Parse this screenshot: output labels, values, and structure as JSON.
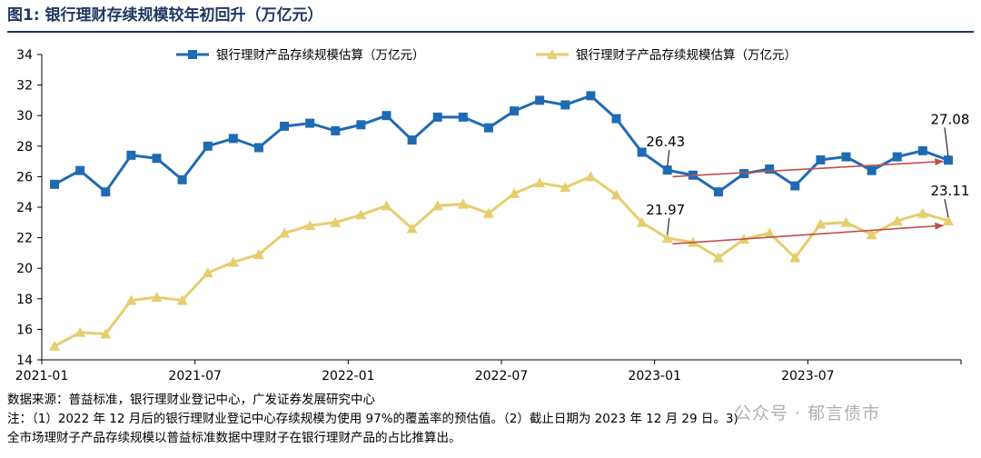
{
  "figure": {
    "title": "图1:  银行理财存续规模较年初回升（万亿元）",
    "source": "数据来源：普益标准，银行理财业登记中心，广发证券发展研究中心",
    "note1": "注：（1）2022 年 12 月后的银行理财业登记中心存续规模为使用 97%的覆盖率的预估值。（2）截止日期为 2023 年 12 月 29 日。3)",
    "note2": "全市场理财子产品存续规模以普益标准数据中理财子在银行理财产品的占比推算出。",
    "watermark": "公众号 · 郁言债市"
  },
  "chart_data": {
    "type": "line",
    "ylim": [
      14,
      34
    ],
    "yticks": [
      14,
      16,
      18,
      20,
      22,
      24,
      26,
      28,
      30,
      32,
      34
    ],
    "xtick_labels": [
      "2021-01",
      "2021-07",
      "2022-01",
      "2022-07",
      "2023-01",
      "2023-07"
    ],
    "x": [
      "2021-01",
      "2021-02",
      "2021-03",
      "2021-04",
      "2021-05",
      "2021-06",
      "2021-07",
      "2021-08",
      "2021-09",
      "2021-10",
      "2021-11",
      "2021-12",
      "2022-01",
      "2022-02",
      "2022-03",
      "2022-04",
      "2022-05",
      "2022-06",
      "2022-07",
      "2022-08",
      "2022-09",
      "2022-10",
      "2022-11",
      "2022-12",
      "2023-01",
      "2023-02",
      "2023-03",
      "2023-04",
      "2023-05",
      "2023-06",
      "2023-07",
      "2023-08",
      "2023-09",
      "2023-10",
      "2023-11",
      "2023-12"
    ],
    "series": [
      {
        "name": "银行理财产品存续规模估算（万亿元）",
        "color": "#1f6bb3",
        "marker": "square",
        "values": [
          25.5,
          26.4,
          25.0,
          27.4,
          27.2,
          25.8,
          28.0,
          28.5,
          27.9,
          29.3,
          29.5,
          29.0,
          29.4,
          30.0,
          28.4,
          29.9,
          29.9,
          29.2,
          30.3,
          31.0,
          30.7,
          31.3,
          29.8,
          27.6,
          26.43,
          26.1,
          25.0,
          26.2,
          26.5,
          25.4,
          27.1,
          27.3,
          26.4,
          27.3,
          27.7,
          27.08
        ]
      },
      {
        "name": "银行理财子产品存续规模估算（万亿元）",
        "color": "#e6cd6e",
        "marker": "triangle",
        "values": [
          14.9,
          15.8,
          15.7,
          17.9,
          18.1,
          17.9,
          19.7,
          20.4,
          20.9,
          22.3,
          22.8,
          23.0,
          23.5,
          24.1,
          22.6,
          24.1,
          24.2,
          23.6,
          24.9,
          25.6,
          25.3,
          26.0,
          24.8,
          23.0,
          21.97,
          21.7,
          20.7,
          21.9,
          22.3,
          20.7,
          22.9,
          23.0,
          22.2,
          23.1,
          23.6,
          23.11
        ]
      }
    ],
    "annotations": [
      {
        "text": "26.43",
        "series": 0,
        "index": 24
      },
      {
        "text": "27.08",
        "series": 0,
        "index": 35
      },
      {
        "text": "21.97",
        "series": 1,
        "index": 24
      },
      {
        "text": "23.11",
        "series": 1,
        "index": 35
      }
    ],
    "trend_arrows": [
      {
        "color": "#c0504d",
        "from": {
          "index": 24.2,
          "value": 26.0
        },
        "to": {
          "index": 34.8,
          "value": 27.0
        }
      },
      {
        "color": "#c0504d",
        "from": {
          "index": 24.2,
          "value": 21.6
        },
        "to": {
          "index": 34.8,
          "value": 22.8
        }
      }
    ],
    "legend": "top-center",
    "grid": false
  }
}
